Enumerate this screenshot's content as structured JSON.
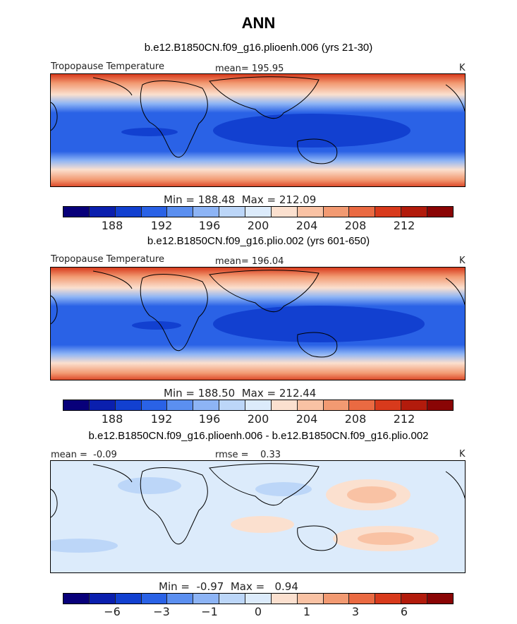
{
  "title": "ANN",
  "colors": [
    "#08007a",
    "#0a1fae",
    "#1240d0",
    "#2a62e6",
    "#5b8ff0",
    "#8db4f5",
    "#bcd6f8",
    "#dcebfb",
    "#fbe0cf",
    "#f9c2a4",
    "#f29a72",
    "#ea6a42",
    "#d83a1c",
    "#b21b0c",
    "#8a0505"
  ],
  "panels": [
    {
      "title": "b.e12.B1850CN.f09_g16.plioenh.006 (yrs 21-30)",
      "left_label": "Tropopause Temperature",
      "stat": "mean= 195.95",
      "units": "K",
      "minmax": "Min = 188.48  Max = 212.09",
      "ticks": [
        "188",
        "192",
        "196",
        "200",
        "204",
        "208",
        "212"
      ]
    },
    {
      "title": "b.e12.B1850CN.f09_g16.plio.002 (yrs 601-650)",
      "left_label": "Tropopause Temperature",
      "stat": "mean= 196.04",
      "units": "K",
      "minmax": "Min = 188.50  Max = 212.44",
      "ticks": [
        "188",
        "192",
        "196",
        "200",
        "204",
        "208",
        "212"
      ]
    },
    {
      "title": "b.e12.B1850CN.f09_g16.plioenh.006 - b.e12.B1850CN.f09_g16.plio.002",
      "left_label": "mean =  -0.09",
      "stat": "rmse =    0.33",
      "units": "K",
      "minmax": "Min =  -0.97  Max =   0.94",
      "ticks": [
        "−6",
        "−3",
        "−1",
        "0",
        "1",
        "3",
        "6"
      ]
    }
  ],
  "chart_data": [
    {
      "type": "heatmap",
      "title": "b.e12.B1850CN.f09_g16.plioenh.006 (yrs 21-30)",
      "variable": "Tropopause Temperature",
      "units": "K",
      "mean": 195.95,
      "min": 188.48,
      "max": 212.09,
      "colorbar_levels": [
        188,
        192,
        196,
        200,
        204,
        208,
        212
      ]
    },
    {
      "type": "heatmap",
      "title": "b.e12.B1850CN.f09_g16.plio.002 (yrs 601-650)",
      "variable": "Tropopause Temperature",
      "units": "K",
      "mean": 196.04,
      "min": 188.5,
      "max": 212.44,
      "colorbar_levels": [
        188,
        192,
        196,
        200,
        204,
        208,
        212
      ]
    },
    {
      "type": "heatmap",
      "title": "b.e12.B1850CN.f09_g16.plioenh.006 - b.e12.B1850CN.f09_g16.plio.002",
      "units": "K",
      "mean": -0.09,
      "rmse": 0.33,
      "min": -0.97,
      "max": 0.94,
      "colorbar_levels": [
        -6,
        -3,
        -1,
        0,
        1,
        3,
        6
      ]
    }
  ]
}
